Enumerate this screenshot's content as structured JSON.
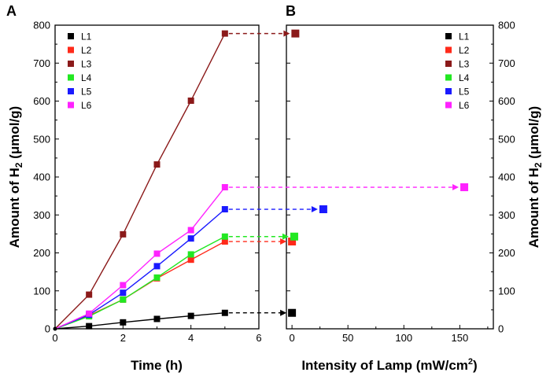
{
  "chart_data": [
    {
      "panel": "A",
      "type": "line",
      "xlabel": "Time (h)",
      "ylabel": "Amount of H",
      "ylabel_sub": "2",
      "ylabel_unit": " (μmol/g)",
      "xlim": [
        0,
        6
      ],
      "ylim": [
        0,
        800
      ],
      "xticks": [
        "0",
        "2",
        "4",
        "6"
      ],
      "yticks": [
        "0",
        "100",
        "200",
        "300",
        "400",
        "500",
        "600",
        "700",
        "800"
      ],
      "x": [
        0,
        1,
        2,
        3,
        4,
        5
      ],
      "series": [
        {
          "name": "L1",
          "color": "#000000",
          "values": [
            0,
            7,
            17,
            26,
            34,
            42
          ]
        },
        {
          "name": "L2",
          "color": "#ff2a1a",
          "values": [
            0,
            35,
            77,
            133,
            182,
            230
          ]
        },
        {
          "name": "L3",
          "color": "#8b1a1a",
          "values": [
            0,
            90,
            249,
            433,
            601,
            778
          ]
        },
        {
          "name": "L4",
          "color": "#22e822",
          "values": [
            0,
            33,
            77,
            135,
            196,
            243
          ]
        },
        {
          "name": "L5",
          "color": "#1a1aff",
          "values": [
            0,
            37,
            95,
            165,
            238,
            315
          ]
        },
        {
          "name": "L6",
          "color": "#ff22ff",
          "values": [
            0,
            40,
            115,
            198,
            260,
            373
          ]
        }
      ],
      "legend": "top-left"
    },
    {
      "panel": "B",
      "type": "scatter",
      "xlabel": "Intensity of Lamp (mW/cm",
      "xlabel_sup": "2",
      "xlabel_tail": ")",
      "ylabel": "Amount of H",
      "ylabel_sub": "2",
      "ylabel_unit": " (μmol/g)",
      "xlim": [
        -5,
        180
      ],
      "ylim": [
        0,
        800
      ],
      "xticks": [
        "0",
        "50",
        "100",
        "150"
      ],
      "yticks": [
        "0",
        "100",
        "200",
        "300",
        "400",
        "500",
        "600",
        "700",
        "800"
      ],
      "series": [
        {
          "name": "L1",
          "color": "#000000",
          "x": 0,
          "y": 42
        },
        {
          "name": "L2",
          "color": "#ff2a1a",
          "x": 0,
          "y": 230
        },
        {
          "name": "L3",
          "color": "#8b1a1a",
          "x": 3,
          "y": 778
        },
        {
          "name": "L4",
          "color": "#22e822",
          "x": 2,
          "y": 243
        },
        {
          "name": "L5",
          "color": "#1a1aff",
          "x": 28,
          "y": 315
        },
        {
          "name": "L6",
          "color": "#ff22ff",
          "x": 154,
          "y": 373
        }
      ],
      "legend": "top-right"
    }
  ]
}
